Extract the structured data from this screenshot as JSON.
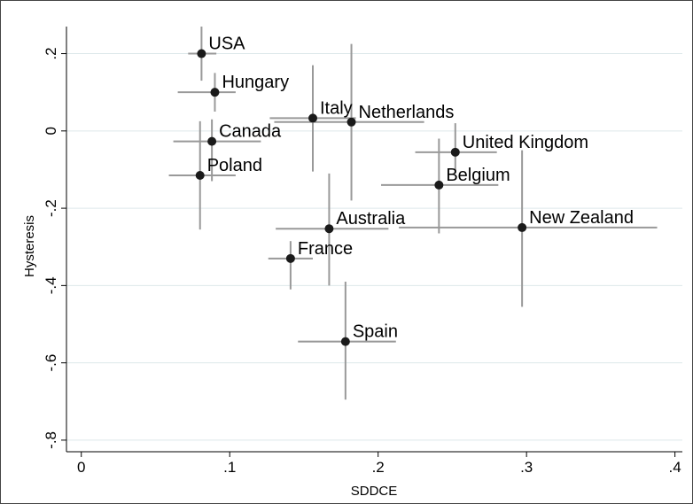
{
  "chart_data": {
    "type": "scatter",
    "title": "",
    "xlabel": "SDDCE",
    "ylabel": "Hysteresis",
    "xlim": [
      -0.01,
      0.405
    ],
    "ylim": [
      -0.83,
      0.27
    ],
    "x_ticks": [
      0,
      0.1,
      0.2,
      0.3,
      0.4
    ],
    "x_tick_labels": [
      "0",
      ".1",
      ".2",
      ".3",
      ".4"
    ],
    "y_ticks": [
      0.2,
      0,
      -0.2,
      -0.4,
      -0.6,
      -0.8
    ],
    "y_tick_labels": [
      ".2",
      "0",
      "-.2",
      "-.4",
      "-.6",
      "-.8"
    ],
    "grid": "horizontal",
    "legend": "none",
    "points": [
      {
        "label": "USA",
        "x": 0.081,
        "y": 0.2,
        "x_lo": 0.072,
        "x_hi": 0.091,
        "y_lo": 0.13,
        "y_hi": 0.27
      },
      {
        "label": "Hungary",
        "x": 0.09,
        "y": 0.1,
        "x_lo": 0.065,
        "x_hi": 0.104,
        "y_lo": 0.05,
        "y_hi": 0.15
      },
      {
        "label": "Italy",
        "x": 0.156,
        "y": 0.033,
        "x_lo": 0.127,
        "x_hi": 0.185,
        "y_lo": -0.105,
        "y_hi": 0.17
      },
      {
        "label": "Netherlands",
        "x": 0.182,
        "y": 0.023,
        "x_lo": 0.13,
        "x_hi": 0.231,
        "y_lo": -0.18,
        "y_hi": 0.225
      },
      {
        "label": "Canada",
        "x": 0.088,
        "y": -0.027,
        "x_lo": 0.062,
        "x_hi": 0.121,
        "y_lo": -0.13,
        "y_hi": 0.03
      },
      {
        "label": "United Kingdom",
        "x": 0.252,
        "y": -0.055,
        "x_lo": 0.225,
        "x_hi": 0.28,
        "y_lo": -0.11,
        "y_hi": 0.02
      },
      {
        "label": "Poland",
        "x": 0.08,
        "y": -0.115,
        "x_lo": 0.059,
        "x_hi": 0.104,
        "y_lo": -0.255,
        "y_hi": 0.025
      },
      {
        "label": "Belgium",
        "x": 0.241,
        "y": -0.14,
        "x_lo": 0.202,
        "x_hi": 0.281,
        "y_lo": -0.265,
        "y_hi": -0.02
      },
      {
        "label": "Australia",
        "x": 0.167,
        "y": -0.253,
        "x_lo": 0.131,
        "x_hi": 0.207,
        "y_lo": -0.4,
        "y_hi": -0.11
      },
      {
        "label": "New Zealand",
        "x": 0.297,
        "y": -0.25,
        "x_lo": 0.214,
        "x_hi": 0.388,
        "y_lo": -0.455,
        "y_hi": -0.05
      },
      {
        "label": "France",
        "x": 0.141,
        "y": -0.33,
        "x_lo": 0.126,
        "x_hi": 0.156,
        "y_lo": -0.41,
        "y_hi": -0.285
      },
      {
        "label": "Spain",
        "x": 0.178,
        "y": -0.545,
        "x_lo": 0.146,
        "x_hi": 0.212,
        "y_lo": -0.695,
        "y_hi": -0.39
      }
    ]
  }
}
